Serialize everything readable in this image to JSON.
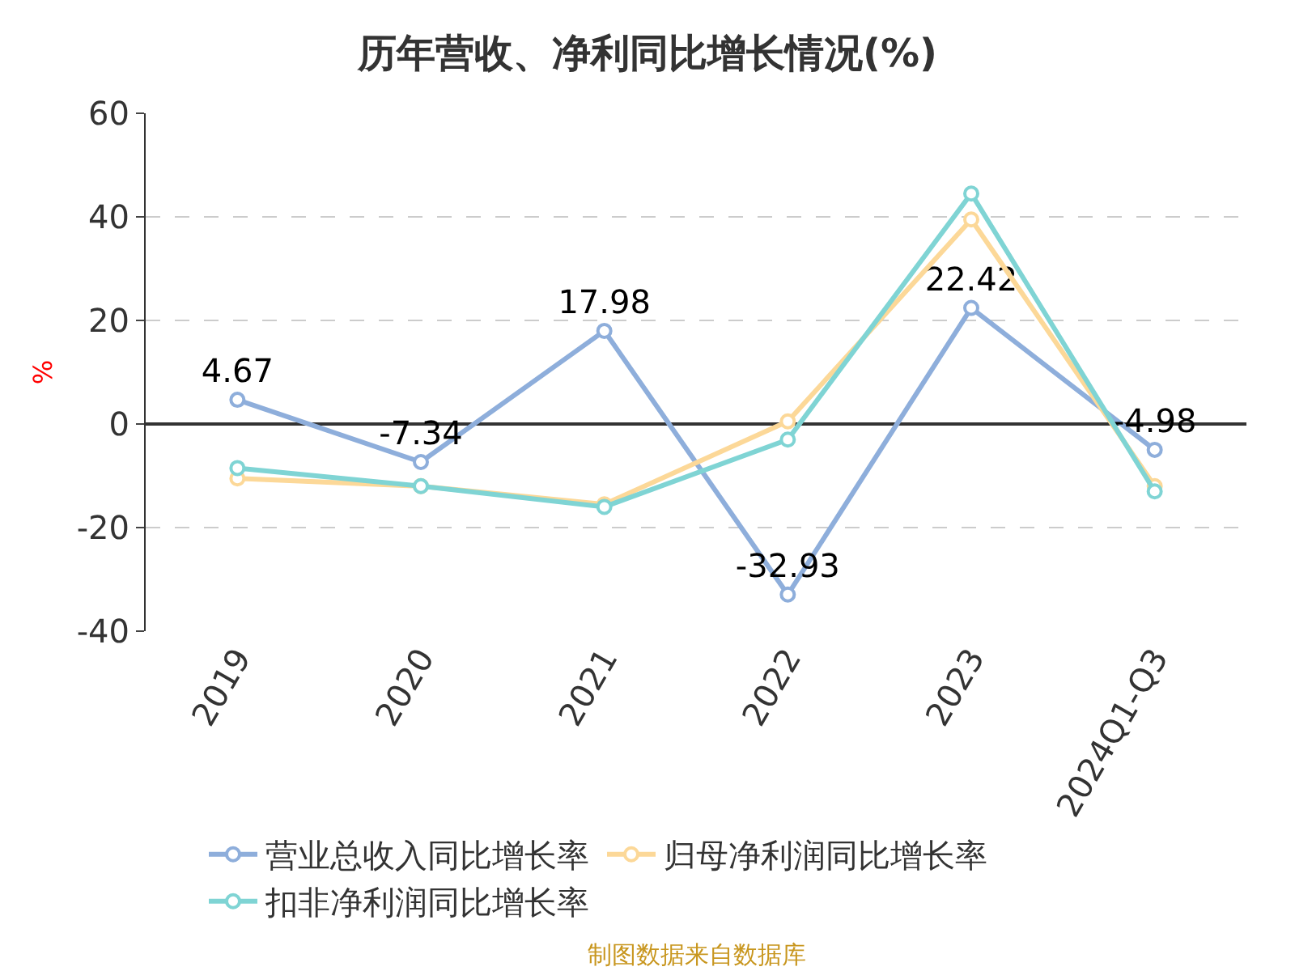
{
  "chart_data": {
    "type": "line",
    "title": "历年营收、净利同比增长情况(%)",
    "ylabel": "%",
    "categories": [
      "2019",
      "2020",
      "2021",
      "2022",
      "2023",
      "2024Q1-Q3"
    ],
    "series": [
      {
        "name": "营业总收入同比增长率",
        "color": "#8eaedb",
        "values": [
          4.67,
          -7.34,
          17.98,
          -32.93,
          22.42,
          -4.98
        ],
        "value_labels": [
          "4.67",
          "-7.34",
          "17.98",
          "-32.93",
          "22.42",
          "-4.98"
        ]
      },
      {
        "name": "归母净利润同比增长率",
        "color": "#fcd898",
        "values": [
          -10.5,
          -12,
          -15.5,
          0.5,
          39.5,
          -12
        ]
      },
      {
        "name": "扣非净利润同比增长率",
        "color": "#7fd4d4",
        "values": [
          -8.5,
          -12,
          -16,
          -3,
          44.5,
          -13
        ]
      }
    ],
    "ylim": [
      -40,
      60
    ],
    "yticks": [
      -40,
      -20,
      0,
      20,
      40,
      60
    ],
    "grid": "y",
    "legend": "bottom",
    "marker": "circle",
    "line_style": "solid",
    "annotations": [
      "制图数据来自数据库"
    ]
  }
}
